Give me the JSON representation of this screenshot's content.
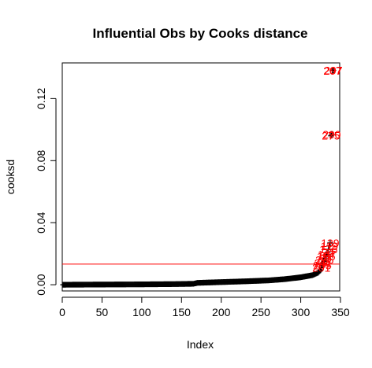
{
  "chart_data": {
    "type": "scatter",
    "title": "Influential Obs by Cooks distance",
    "xlabel": "Index",
    "ylabel": "cooksd",
    "xlim": [
      0,
      349
    ],
    "ylim": [
      -0.004,
      0.143
    ],
    "x_ticks": [
      0,
      50,
      100,
      150,
      200,
      250,
      300,
      350
    ],
    "y_ticks": [
      0.0,
      0.04,
      0.08,
      0.12
    ],
    "y_tick_labels": [
      "0.00",
      "0.04",
      "0.08",
      "0.12"
    ],
    "marker": "+",
    "series": [
      {
        "n": 341,
        "profile": [
          [
            1,
            0.0
          ],
          [
            10,
            3e-05
          ],
          [
            30,
            8e-05
          ],
          [
            60,
            0.00015
          ],
          [
            100,
            0.00025
          ],
          [
            140,
            0.0004
          ],
          [
            165,
            0.0006
          ],
          [
            170,
            0.0012
          ],
          [
            200,
            0.0017
          ],
          [
            230,
            0.0022
          ],
          [
            260,
            0.0028
          ],
          [
            280,
            0.0036
          ],
          [
            300,
            0.0048
          ],
          [
            315,
            0.0062
          ],
          [
            322,
            0.0078
          ],
          [
            327,
            0.0105
          ]
        ],
        "top_values": [
          0.011,
          0.0125,
          0.014,
          0.015,
          0.016,
          0.017,
          0.0182,
          0.0195,
          0.021,
          0.0228,
          0.025,
          0.027,
          0.096,
          0.0968,
          0.138,
          0.1382
        ]
      }
    ],
    "reference_line": {
      "y": 0.0133,
      "color": "#ff0000"
    },
    "influential_labels": [
      {
        "x": 326,
        "y": 0.011,
        "label": "201"
      },
      {
        "x": 327,
        "y": 0.0125,
        "label": "205"
      },
      {
        "x": 328,
        "y": 0.014,
        "label": "211"
      },
      {
        "x": 329,
        "y": 0.015,
        "label": "22"
      },
      {
        "x": 330,
        "y": 0.016,
        "label": "215"
      },
      {
        "x": 331,
        "y": 0.017,
        "label": "73"
      },
      {
        "x": 332,
        "y": 0.0182,
        "label": "126"
      },
      {
        "x": 333,
        "y": 0.0195,
        "label": "147"
      },
      {
        "x": 334,
        "y": 0.021,
        "label": "24"
      },
      {
        "x": 335,
        "y": 0.0228,
        "label": "176"
      },
      {
        "x": 336,
        "y": 0.025,
        "label": "119"
      },
      {
        "x": 337,
        "y": 0.027,
        "label": "139"
      },
      {
        "x": 338,
        "y": 0.096,
        "label": "275"
      },
      {
        "x": 339,
        "y": 0.0968,
        "label": "290"
      },
      {
        "x": 340,
        "y": 0.138,
        "label": "207"
      },
      {
        "x": 341,
        "y": 0.1382,
        "label": "297"
      }
    ],
    "label_color": "#ff0000",
    "grid": false,
    "legend": "none"
  }
}
